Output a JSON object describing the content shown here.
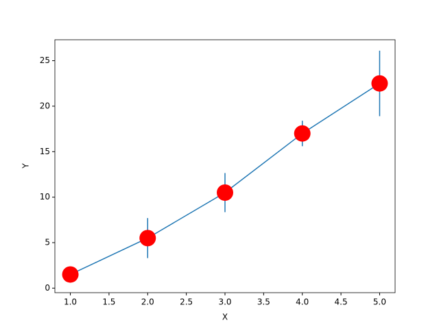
{
  "chart_data": {
    "type": "errorbar",
    "xlabel": "X",
    "ylabel": "Y",
    "x": [
      1,
      2,
      3,
      4,
      5
    ],
    "values": [
      1.5,
      5.5,
      10.5,
      17,
      22.5
    ],
    "errors": [
      0.8,
      2.2,
      2.15,
      1.4,
      3.6
    ],
    "line_color": "#1f77b4",
    "marker_color": "#ff0000",
    "xlim": [
      0.8,
      5.2
    ],
    "xticks": [
      {
        "value": 1,
        "label": "1.0"
      },
      {
        "value": 1.5,
        "label": "1.5"
      },
      {
        "value": 2,
        "label": "2.0"
      },
      {
        "value": 2.5,
        "label": "2.5"
      },
      {
        "value": 3,
        "label": "3.0"
      },
      {
        "value": 3.5,
        "label": "3.5"
      },
      {
        "value": 4,
        "label": "4.0"
      },
      {
        "value": 4.5,
        "label": "4.5"
      },
      {
        "value": 5,
        "label": "5.0"
      }
    ],
    "ylim": [
      -0.5,
      27.3
    ],
    "yticks": [
      0,
      5,
      10,
      15,
      20,
      25
    ]
  }
}
